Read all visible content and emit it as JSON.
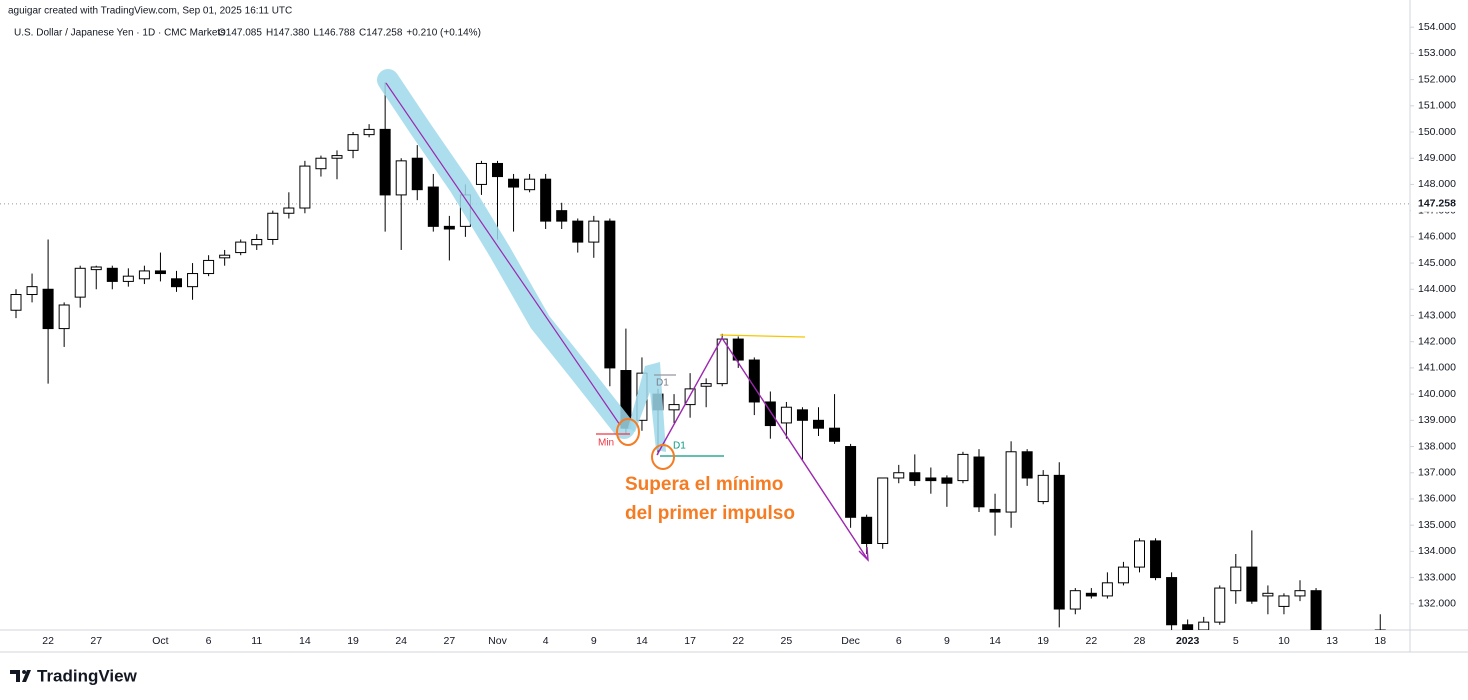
{
  "header": {
    "credit": "aguigar created with TradingView.com, Sep 01, 2025 16:11 UTC",
    "legend": "U.S. Dollar / Japanese Yen · 1D · CMC Markets",
    "ohlc": [
      "O147.085",
      "H147.380",
      "L146.788",
      "C147.258",
      "+0.210 (+0.14%)"
    ]
  },
  "brand": "TradingView",
  "chart_data": {
    "type": "candlestick",
    "categories": [
      null,
      null,
      "22",
      null,
      null,
      "27",
      null,
      null,
      null,
      "Oct",
      null,
      null,
      "6",
      null,
      null,
      "11",
      null,
      null,
      "14",
      null,
      null,
      "19",
      null,
      null,
      "24",
      null,
      null,
      "27",
      null,
      null,
      "Nov",
      null,
      null,
      "4",
      null,
      null,
      "9",
      null,
      null,
      "14",
      null,
      null,
      "17",
      null,
      null,
      "22",
      null,
      null,
      "25",
      null,
      null,
      null,
      "Dec",
      null,
      null,
      "6",
      null,
      null,
      "9",
      null,
      null,
      "14",
      null,
      null,
      "19",
      null,
      null,
      "22",
      null,
      null,
      "28",
      null,
      null,
      "2023",
      null,
      null,
      "5",
      null,
      null,
      "10",
      null,
      null,
      "13",
      null,
      null,
      "18"
    ],
    "open": [
      143.2,
      143.8,
      144.0,
      142.5,
      143.7,
      144.75,
      144.8,
      144.3,
      144.4,
      144.7,
      144.4,
      144.1,
      144.6,
      145.2,
      145.4,
      145.7,
      145.9,
      146.9,
      147.1,
      148.6,
      149.0,
      149.3,
      149.9,
      150.1,
      147.6,
      149.0,
      147.9,
      146.4,
      146.4,
      148.0,
      148.8,
      148.2,
      147.8,
      148.2,
      147.0,
      146.6,
      145.8,
      146.6,
      140.9,
      139.0,
      140.0,
      139.4,
      139.6,
      140.3,
      140.4,
      142.1,
      141.3,
      139.7,
      138.9,
      139.4,
      139.0,
      138.7,
      138.0,
      135.3,
      134.3,
      136.8,
      137.0,
      136.8,
      136.8,
      136.7,
      137.6,
      135.6,
      135.5,
      137.8,
      135.9,
      136.9,
      131.8,
      132.4,
      132.3,
      132.8,
      133.4,
      134.4,
      133.0,
      131.2,
      131.0,
      131.3,
      132.5,
      133.4,
      132.3,
      131.9,
      132.3,
      132.5,
      null,
      null,
      null,
      131.0
    ],
    "high": [
      144.0,
      144.6,
      145.9,
      143.5,
      144.9,
      144.9,
      144.9,
      144.8,
      144.9,
      145.4,
      144.7,
      145.0,
      145.3,
      145.5,
      145.9,
      146.1,
      147.0,
      147.7,
      148.9,
      149.1,
      149.3,
      150.0,
      150.3,
      151.9,
      149.0,
      149.5,
      148.4,
      146.8,
      148.0,
      148.9,
      148.9,
      148.4,
      148.4,
      148.4,
      147.3,
      146.7,
      146.8,
      146.7,
      142.5,
      141.4,
      140.2,
      140.0,
      140.8,
      140.6,
      142.3,
      142.2,
      141.4,
      140.1,
      139.7,
      139.5,
      139.5,
      140.0,
      138.1,
      135.4,
      136.8,
      137.3,
      137.7,
      137.2,
      136.9,
      137.8,
      137.9,
      136.2,
      138.2,
      137.9,
      137.1,
      137.4,
      132.6,
      132.6,
      133.2,
      133.6,
      134.5,
      134.5,
      133.2,
      131.4,
      131.5,
      132.7,
      133.9,
      134.8,
      132.7,
      132.4,
      132.9,
      132.6,
      null,
      null,
      null,
      131.6
    ],
    "low": [
      142.9,
      143.5,
      140.4,
      141.8,
      143.3,
      144.0,
      144.0,
      144.1,
      144.2,
      144.3,
      143.9,
      143.6,
      144.5,
      144.9,
      145.3,
      145.5,
      145.7,
      146.7,
      146.9,
      148.3,
      148.2,
      149.0,
      149.8,
      146.2,
      145.5,
      147.4,
      146.2,
      145.1,
      146.0,
      147.6,
      145.9,
      146.2,
      147.7,
      146.3,
      146.3,
      145.4,
      145.2,
      140.3,
      138.5,
      138.6,
      137.7,
      138.9,
      139.1,
      139.5,
      140.3,
      141.0,
      139.2,
      138.3,
      138.3,
      137.5,
      138.4,
      138.1,
      134.9,
      133.9,
      134.1,
      136.6,
      136.5,
      136.2,
      135.7,
      136.6,
      135.5,
      134.6,
      134.9,
      136.5,
      135.8,
      131.1,
      131.6,
      132.2,
      132.2,
      132.7,
      133.2,
      132.9,
      131.0,
      130.8,
      130.9,
      131.2,
      132.0,
      132.0,
      131.6,
      131.6,
      132.1,
      130.8,
      null,
      null,
      null,
      130.8
    ],
    "close": [
      143.8,
      144.1,
      142.5,
      143.4,
      144.8,
      144.85,
      144.3,
      144.5,
      144.7,
      144.6,
      144.1,
      144.6,
      145.1,
      145.3,
      145.8,
      145.9,
      146.9,
      147.1,
      148.7,
      149.0,
      149.1,
      149.9,
      150.1,
      147.6,
      148.9,
      147.8,
      146.4,
      146.3,
      147.6,
      148.8,
      148.3,
      147.9,
      148.2,
      146.6,
      146.6,
      145.8,
      146.6,
      141.0,
      138.7,
      140.8,
      139.4,
      139.6,
      140.2,
      140.4,
      142.1,
      141.3,
      139.7,
      138.8,
      139.5,
      139.0,
      138.7,
      138.2,
      135.3,
      134.3,
      136.8,
      137.0,
      136.7,
      136.7,
      136.6,
      137.7,
      135.7,
      135.5,
      137.8,
      136.8,
      136.9,
      131.8,
      132.5,
      132.3,
      132.8,
      133.4,
      134.4,
      133.0,
      131.2,
      131.0,
      131.3,
      132.6,
      133.4,
      132.1,
      132.4,
      132.3,
      132.5,
      131.0,
      null,
      null,
      null,
      131.0
    ],
    "up_color": "#ffffff",
    "down_color": "#000000",
    "border_color": "#000000",
    "ylim": [
      131.0,
      154.35
    ],
    "yticks": [
      {
        "value": 132,
        "label": "132.000"
      },
      {
        "value": 133,
        "label": "133.000"
      },
      {
        "value": 134,
        "label": "134.000"
      },
      {
        "value": 135,
        "label": "135.000"
      },
      {
        "value": 136,
        "label": "136.000"
      },
      {
        "value": 137,
        "label": "137.000"
      },
      {
        "value": 138,
        "label": "138.000"
      },
      {
        "value": 139,
        "label": "139.000"
      },
      {
        "value": 140,
        "label": "140.000"
      },
      {
        "value": 141,
        "label": "141.000"
      },
      {
        "value": 142,
        "label": "142.000"
      },
      {
        "value": 143,
        "label": "143.000"
      },
      {
        "value": 144,
        "label": "144.000"
      },
      {
        "value": 145,
        "label": "145.000"
      },
      {
        "value": 146,
        "label": "146.000"
      },
      {
        "value": 147,
        "label": "147.000"
      },
      {
        "value": 148,
        "label": "148.000"
      },
      {
        "value": 149,
        "label": "149.000"
      },
      {
        "value": 150,
        "label": "150.000"
      },
      {
        "value": 151,
        "label": "151.000"
      },
      {
        "value": 152,
        "label": "152.000"
      },
      {
        "value": 153,
        "label": "153.000"
      },
      {
        "value": 154,
        "label": "154.000"
      }
    ],
    "last_price": 147.258,
    "grid": false,
    "annotations": {
      "min_label": "Min",
      "d1_labels": [
        "D1",
        "D1"
      ],
      "callout": [
        "Supera el mínimo",
        "del primer impulso"
      ]
    }
  }
}
